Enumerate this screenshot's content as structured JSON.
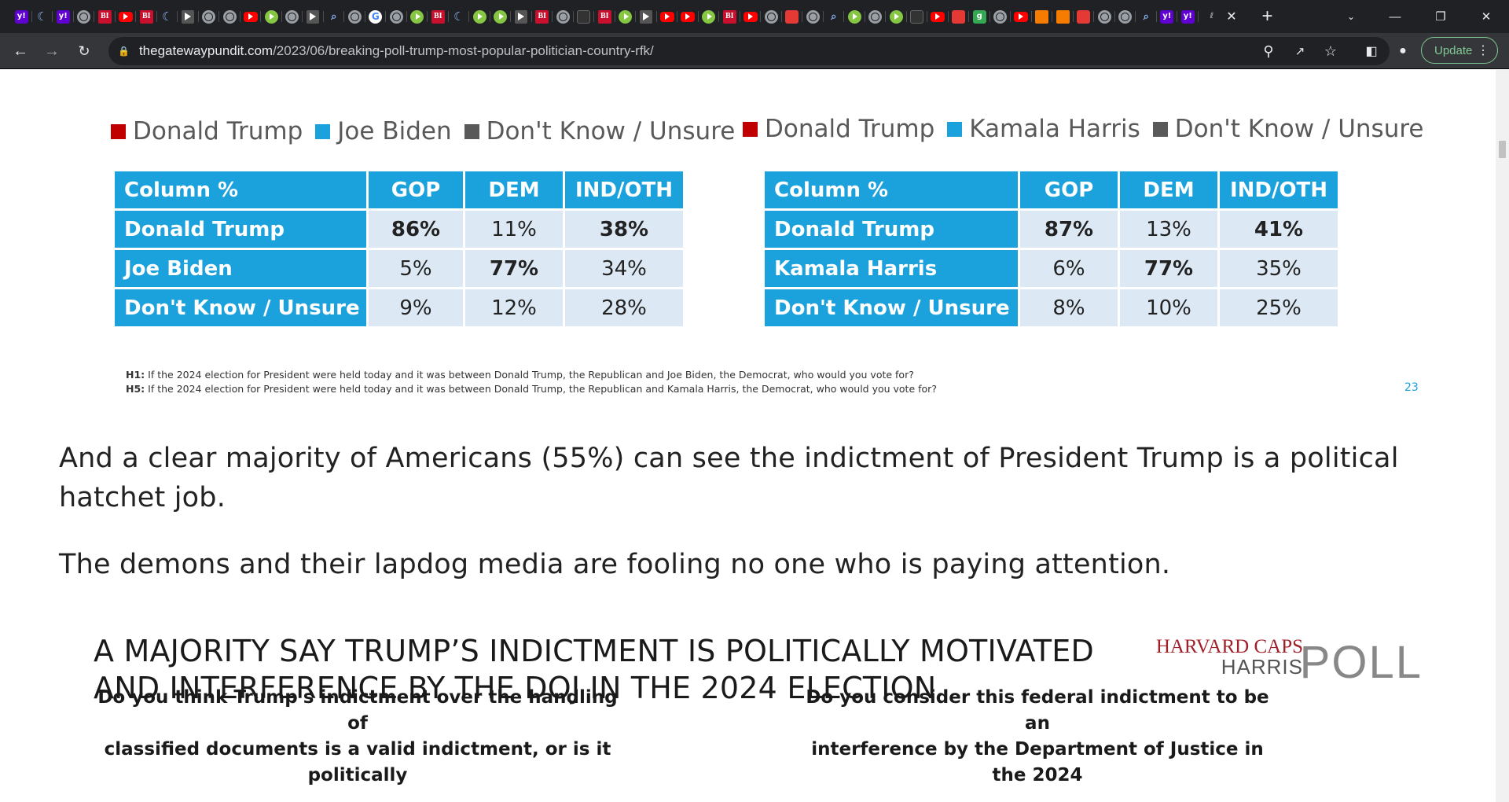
{
  "browser": {
    "tab_favicons": [
      "yahoo-icon",
      "moon-icon",
      "yahoo-icon",
      "globe-icon",
      "bi-icon",
      "youtube-icon",
      "bi-icon",
      "moon-icon",
      "flag-icon",
      "image-icon",
      "globe-icon",
      "youtube-icon",
      "rumble-icon",
      "globe-icon",
      "flag-icon",
      "search-icon",
      "globe-icon",
      "google-icon",
      "globe-icon",
      "rumble-icon",
      "bi-icon",
      "moon-icon",
      "rumble-icon",
      "rumble-icon",
      "flag-icon",
      "bi-icon",
      "globe-icon",
      "dark-icon",
      "bi-icon",
      "rumble-icon",
      "flag-icon",
      "youtube-icon",
      "youtube-icon",
      "rumble-icon",
      "bi-icon",
      "youtube-icon",
      "globe-icon",
      "red-icon",
      "globe-icon",
      "search-icon",
      "rumble-icon",
      "globe-icon",
      "rumble-icon",
      "dark-icon",
      "youtube-icon",
      "red-icon",
      "green-icon",
      "globe-icon",
      "youtube-icon",
      "orange-icon",
      "orange-icon",
      "red-icon",
      "globe-icon",
      "globe-icon",
      "search-icon",
      "yahoo-icon",
      "yahoo-icon"
    ],
    "active_tab_favicon": "text-icon",
    "bi_text": "BI",
    "y_text": "y!",
    "g_text": "G",
    "gr_text": "g",
    "url_host": "thegatewaypundit.com",
    "url_path": "/2023/06/breaking-poll-trump-most-popular-politician-country-rfk/",
    "update_label": "Update"
  },
  "poll1": {
    "left": {
      "legend": [
        {
          "label": "Donald Trump",
          "color": "#c00000"
        },
        {
          "label": "Joe Biden",
          "color": "#1ba1dc"
        },
        {
          "label": "Don't Know / Unsure",
          "color": "#595959"
        }
      ],
      "headers": [
        "Column %",
        "GOP",
        "DEM",
        "IND/OTH"
      ],
      "rows": [
        {
          "label": "Donald Trump",
          "gop": "86%",
          "dem": "11%",
          "ind": "38%"
        },
        {
          "label": "Joe Biden",
          "gop": "5%",
          "dem": "77%",
          "ind": "34%"
        },
        {
          "label": "Don't Know / Unsure",
          "gop": "9%",
          "dem": "12%",
          "ind": "28%"
        }
      ]
    },
    "right": {
      "legend": [
        {
          "label": "Donald Trump",
          "color": "#c00000"
        },
        {
          "label": "Kamala Harris",
          "color": "#1ba1dc"
        },
        {
          "label": "Don't Know / Unsure",
          "color": "#595959"
        }
      ],
      "headers": [
        "Column %",
        "GOP",
        "DEM",
        "IND/OTH"
      ],
      "rows": [
        {
          "label": "Donald Trump",
          "gop": "87%",
          "dem": "13%",
          "ind": "41%"
        },
        {
          "label": "Kamala Harris",
          "gop": "6%",
          "dem": "77%",
          "ind": "35%"
        },
        {
          "label": "Don't Know / Unsure",
          "gop": "8%",
          "dem": "10%",
          "ind": "25%"
        }
      ]
    },
    "footnote1_label": "H1:",
    "footnote1_text": " If the 2024 election for President were held today and it was between Donald Trump, the Republican and Joe Biden, the Democrat, who would you vote for?",
    "footnote2_label": "H5:",
    "footnote2_text": " If the 2024 election for President were held today and it was between Donald Trump, the Republican and Kamala Harris, the Democrat, who would you vote for?",
    "page_number": "23"
  },
  "article": {
    "para1_line1": "And a clear majority of Americans (55%) can see the indictment of President Trump is a political",
    "para1_line2": "hatchet job.",
    "para2": "The demons and their lapdog media are fooling no one who is paying attention."
  },
  "poll2": {
    "title_line1": "A MAJORITY SAY TRUMP’S INDICTMENT IS POLITICALLY MOTIVATED",
    "title_line2": "AND INTERFERENCE BY THE DOJ IN THE 2024 ELECTION",
    "logo_line1": "HARVARD CAPS",
    "logo_line2": "HARRIS",
    "logo_poll": "POLL",
    "question_left_line1": "Do you think Trump's indictment over the handling of",
    "question_left_line2": "classified documents is a valid indictment, or is it politically",
    "question_right_line1": "Do you consider this federal indictment to be an",
    "question_right_line2": "interference by the Department of Justice in the 2024"
  }
}
